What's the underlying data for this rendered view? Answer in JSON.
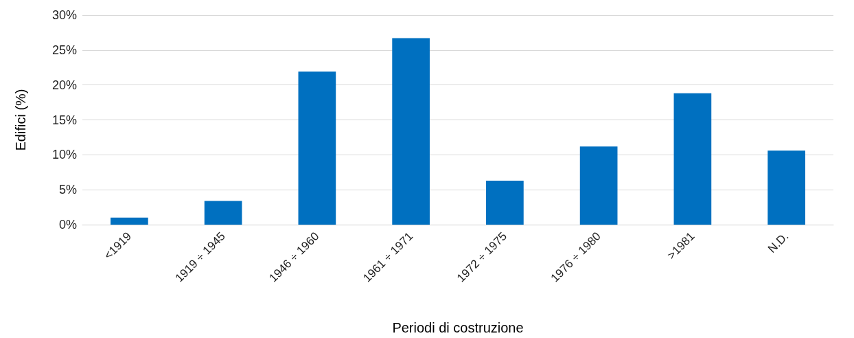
{
  "chart_data": {
    "type": "bar",
    "xlabel": "Periodi di costruzione",
    "ylabel": "Edifici (%)",
    "categories": [
      "<1919",
      "1919 ÷ 1945",
      "1946 ÷ 1960",
      "1961 ÷ 1971",
      "1972 ÷ 1975",
      "1976 ÷ 1980",
      ">1981",
      "N.D."
    ],
    "values": [
      1.0,
      3.4,
      21.9,
      26.7,
      6.3,
      11.2,
      18.8,
      10.6
    ],
    "color": "#0070c0",
    "ylim": [
      0,
      30
    ],
    "yticks": [
      {
        "value": 0,
        "label": "0%"
      },
      {
        "value": 5,
        "label": "5%"
      },
      {
        "value": 10,
        "label": "10%"
      },
      {
        "value": 15,
        "label": "15%"
      },
      {
        "value": 20,
        "label": "20%"
      },
      {
        "value": 25,
        "label": "25%"
      },
      {
        "value": 30,
        "label": "30%"
      }
    ],
    "grid": "y"
  }
}
